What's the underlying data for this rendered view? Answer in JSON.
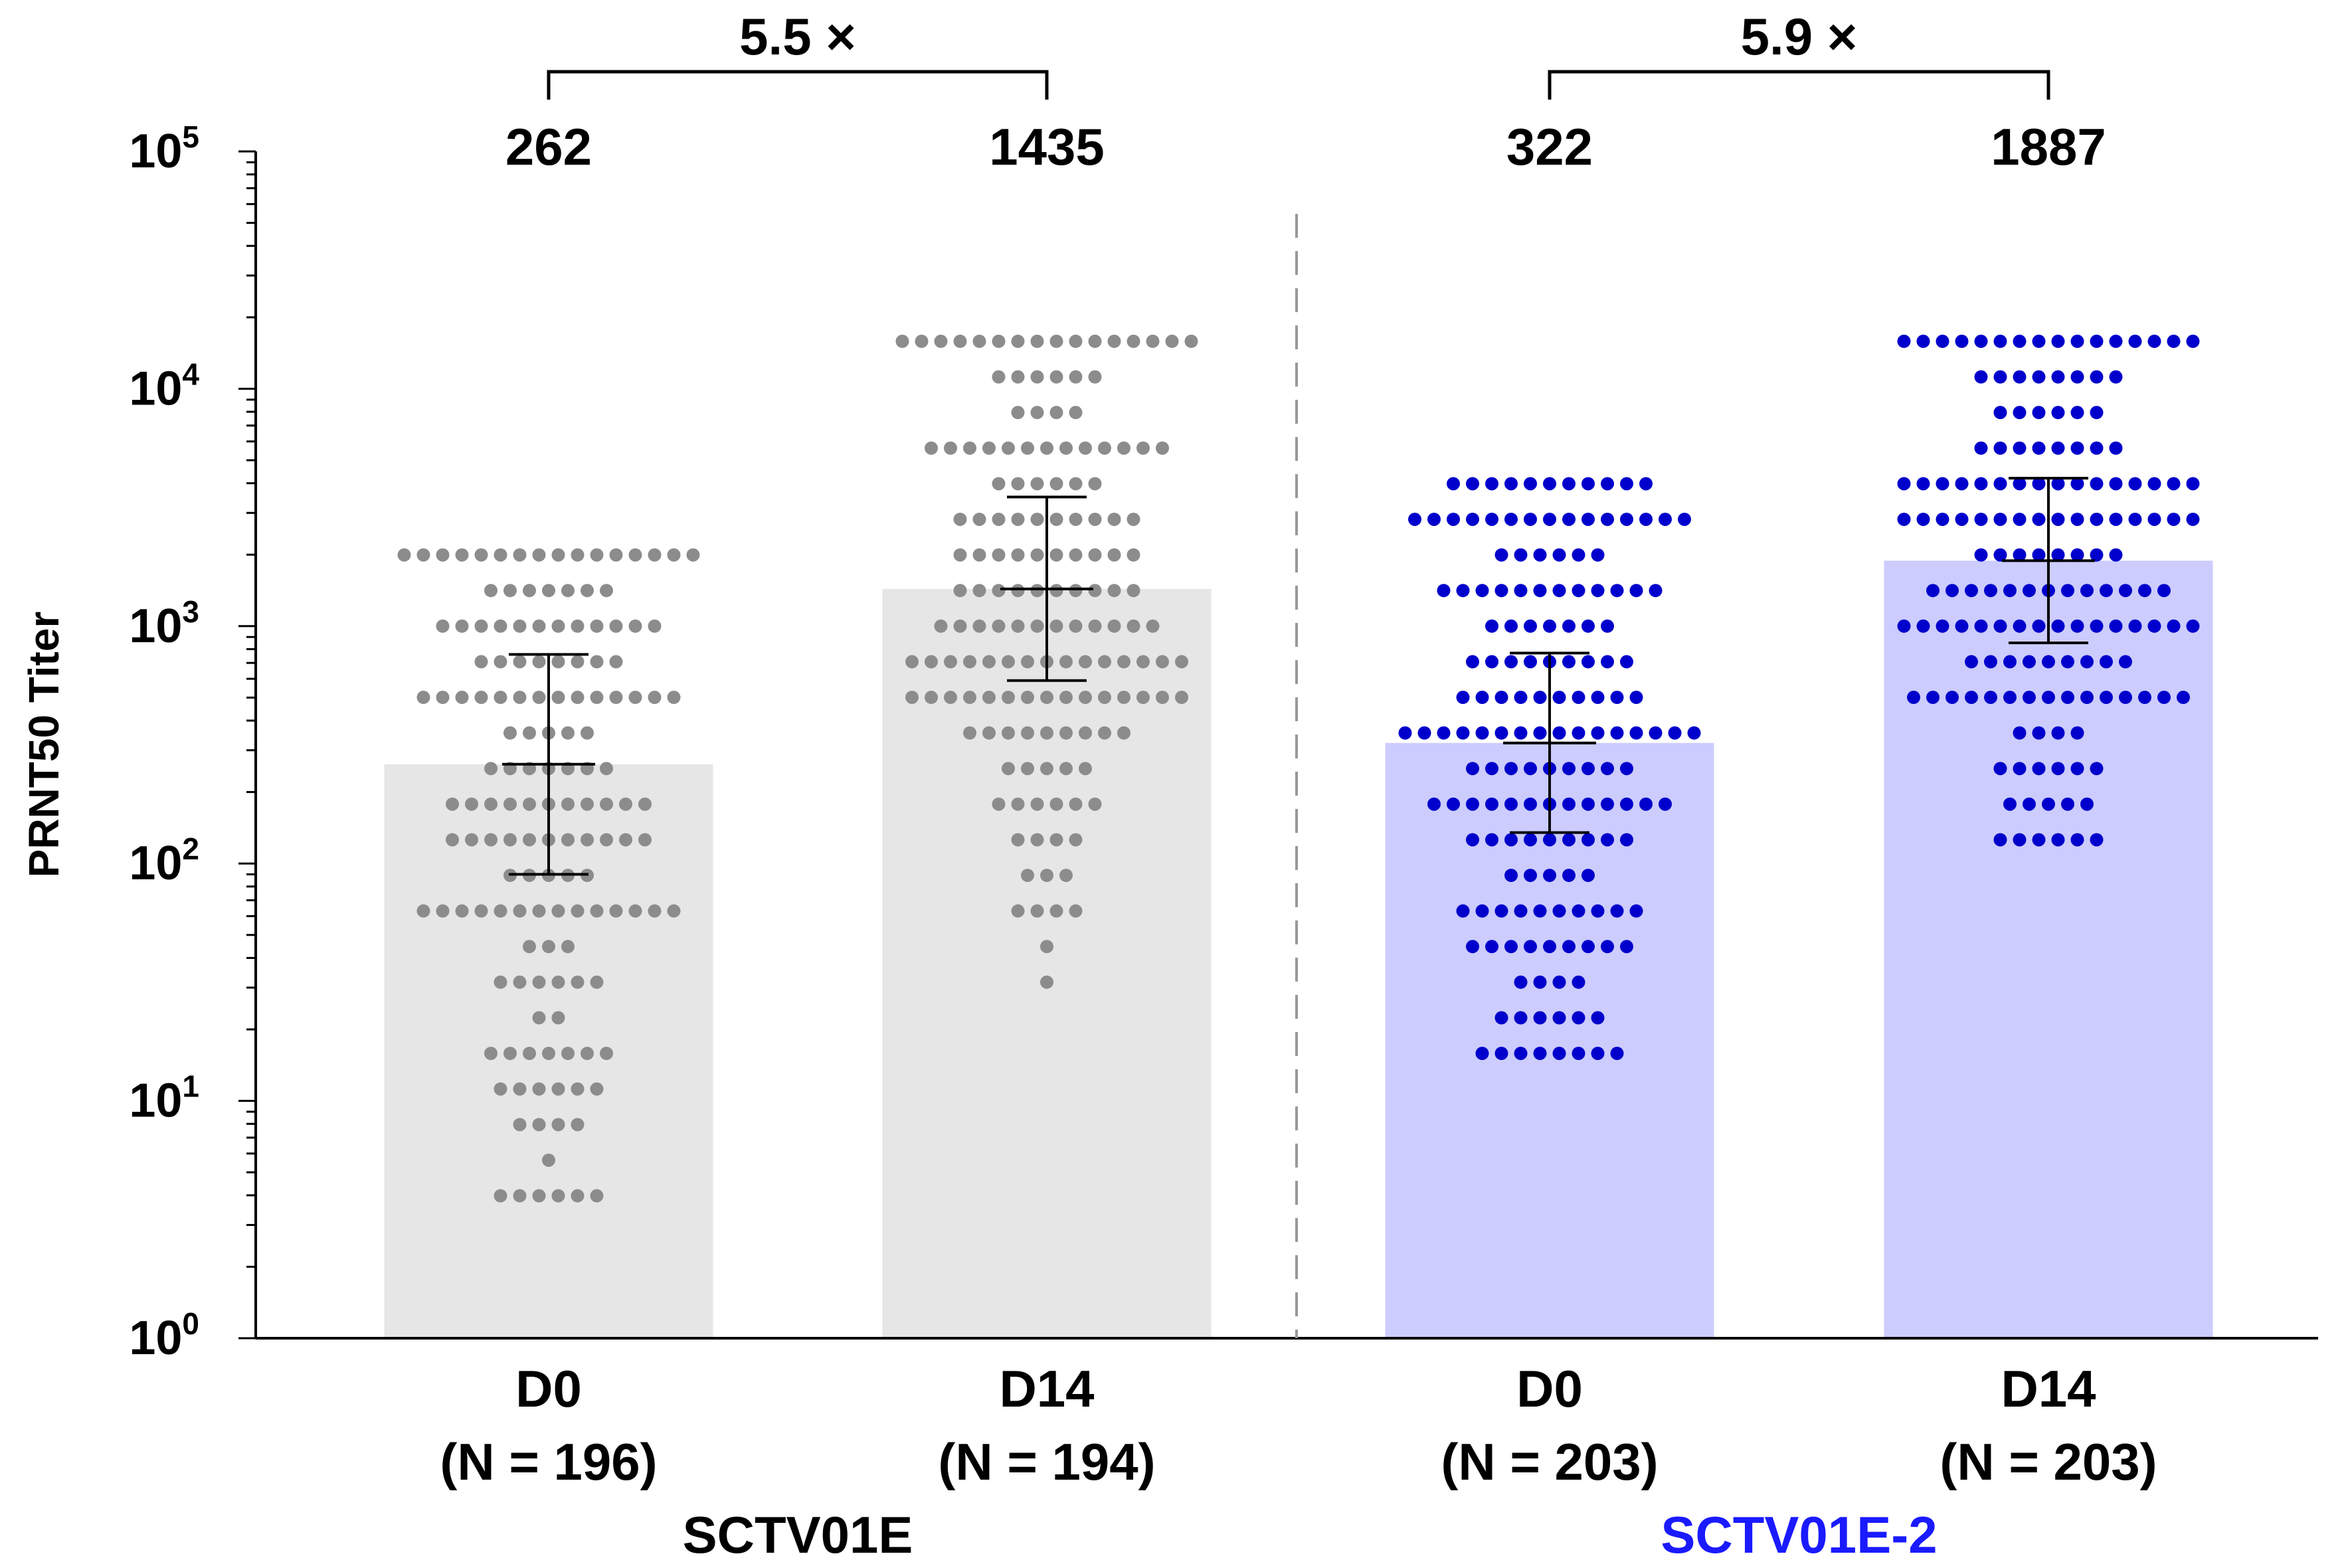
{
  "chart_data": {
    "type": "bar",
    "ylabel": "PRNT50 Titer",
    "yscale": "log",
    "ylim": [
      1,
      100000
    ],
    "yticks": [
      {
        "base": "10",
        "exp": "0",
        "value": 1
      },
      {
        "base": "10",
        "exp": "1",
        "value": 10
      },
      {
        "base": "10",
        "exp": "2",
        "value": 100
      },
      {
        "base": "10",
        "exp": "3",
        "value": 1000
      },
      {
        "base": "10",
        "exp": "4",
        "value": 10000
      },
      {
        "base": "10",
        "exp": "5",
        "value": 100000
      }
    ],
    "groups": [
      {
        "name": "SCTV01E",
        "color": "#000000"
      },
      {
        "name": "SCTV01E-2",
        "color": "#1a1aff"
      }
    ],
    "bars": [
      {
        "group": "SCTV01E",
        "day": "D0",
        "n_label": "(N = 196)",
        "gmt": 262,
        "gmt_label": "262",
        "ci_low": 90,
        "ci_high": 760,
        "bar_color": "#e6e6e6",
        "dot_color": "#8c8c8c"
      },
      {
        "group": "SCTV01E",
        "day": "D14",
        "n_label": "(N = 194)",
        "gmt": 1435,
        "gmt_label": "1435",
        "ci_low": 590,
        "ci_high": 3500,
        "bar_color": "#e6e6e6",
        "dot_color": "#8c8c8c"
      },
      {
        "group": "SCTV01E-2",
        "day": "D0",
        "n_label": "(N = 203)",
        "gmt": 322,
        "gmt_label": "322",
        "ci_low": 135,
        "ci_high": 770,
        "bar_color": "#ccccff",
        "dot_color": "#0000cc"
      },
      {
        "group": "SCTV01E-2",
        "day": "D14",
        "n_label": "(N = 203)",
        "gmt": 1887,
        "gmt_label": "1887",
        "ci_low": 850,
        "ci_high": 4200,
        "bar_color": "#ccccff",
        "dot_color": "#0000cc"
      }
    ],
    "fold_changes": [
      {
        "label": "5.5 ×",
        "from_bar": 0,
        "to_bar": 1
      },
      {
        "label": "5.9 ×",
        "from_bar": 2,
        "to_bar": 3
      }
    ],
    "divider": "dashed line between SCTV01E and SCTV01E-2"
  }
}
